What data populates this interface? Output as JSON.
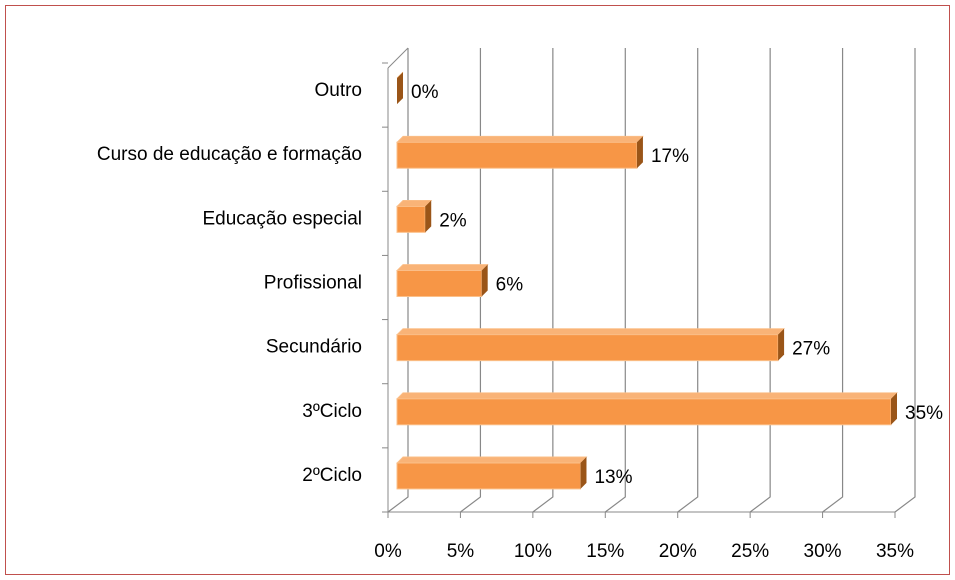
{
  "chart_data": {
    "type": "bar",
    "orientation": "horizontal",
    "categories": [
      "2ºCiclo",
      "3ºCiclo",
      "Secundário",
      "Profissional",
      "Educação especial",
      "Curso de educação e formação",
      "Outro"
    ],
    "values": [
      13,
      35,
      27,
      6,
      2,
      17,
      0
    ],
    "value_labels": [
      "13%",
      "35%",
      "27%",
      "6%",
      "2%",
      "17%",
      "0%"
    ],
    "color": "#f79646",
    "xlim": [
      0,
      35
    ],
    "xticks": [
      {
        "value": 0,
        "label": "0%"
      },
      {
        "value": 5,
        "label": "5%"
      },
      {
        "value": 10,
        "label": "10%"
      },
      {
        "value": 15,
        "label": "15%"
      },
      {
        "value": 20,
        "label": "20%"
      },
      {
        "value": 25,
        "label": "25%"
      },
      {
        "value": 30,
        "label": "30%"
      },
      {
        "value": 35,
        "label": "35%"
      }
    ],
    "grid": true
  }
}
